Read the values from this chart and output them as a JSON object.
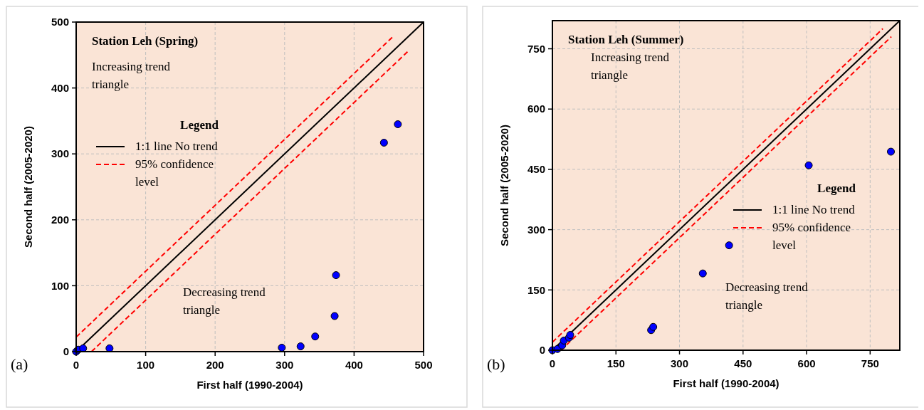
{
  "chart_data": [
    {
      "type": "scatter",
      "title": "Station Leh (Spring)",
      "xlabel": "First half (1990-2004)",
      "ylabel": "Second half (2005-2020)",
      "legend_title": "Legend",
      "legend": "center left",
      "grid": true,
      "xlim": [
        0,
        500
      ],
      "ylim": [
        0,
        500
      ],
      "xticks": [
        0,
        100,
        200,
        300,
        400,
        500
      ],
      "yticks": [
        0,
        100,
        200,
        300,
        400,
        500
      ],
      "annotations": [
        "Increasing trend triangle",
        "Decreasing trend triangle",
        "(a)"
      ],
      "series": [
        {
          "type": "line",
          "name": "1:1 line No trend",
          "color": "#000000",
          "line_style": "solid",
          "x": [
            0,
            500
          ],
          "values": [
            0,
            500
          ]
        },
        {
          "type": "line",
          "name": "95% confidence level",
          "color": "#ff0000",
          "line_style": "dashed",
          "x": [
            0,
            455
          ],
          "values": [
            22,
            477
          ]
        },
        {
          "type": "line",
          "color": "#ff0000",
          "line_style": "dashed",
          "x": [
            22,
            478
          ],
          "values": [
            0,
            456
          ]
        },
        {
          "marker": "circle",
          "color": "#0000ff",
          "x": [
            0,
            3,
            10,
            48,
            296,
            323,
            344,
            372,
            374,
            443,
            463
          ],
          "values": [
            0,
            3,
            5,
            5,
            6,
            8,
            23,
            54,
            116,
            317,
            345
          ]
        }
      ]
    },
    {
      "type": "scatter",
      "title": "Station Leh (Summer)",
      "xlabel": "First half (1990-2004)",
      "ylabel": "Second half (2005-2020)",
      "legend_title": "Legend",
      "legend": "center right",
      "grid": true,
      "xlim": [
        0,
        820
      ],
      "ylim": [
        0,
        820
      ],
      "xticks": [
        0,
        150,
        300,
        450,
        600,
        750
      ],
      "yticks": [
        0,
        150,
        300,
        450,
        600,
        750
      ],
      "annotations": [
        "Increasing trend triangle",
        "Decreasing trend triangle",
        "(b)"
      ],
      "series": [
        {
          "type": "line",
          "name": "1:1 line No trend",
          "color": "#000000",
          "line_style": "solid",
          "x": [
            0,
            820
          ],
          "values": [
            0,
            820
          ]
        },
        {
          "type": "line",
          "name": "95% confidence level",
          "color": "#ff0000",
          "line_style": "dashed",
          "x": [
            0,
            780
          ],
          "values": [
            20,
            800
          ]
        },
        {
          "type": "line",
          "color": "#ff0000",
          "line_style": "dashed",
          "x": [
            20,
            800
          ],
          "values": [
            0,
            780
          ]
        },
        {
          "marker": "circle",
          "color": "#0000ff",
          "x": [
            0,
            12,
            23,
            27,
            39,
            42,
            233,
            238,
            355,
            417,
            605,
            799
          ],
          "values": [
            0,
            3,
            12,
            24,
            31,
            38,
            50,
            58,
            191,
            261,
            460,
            494
          ]
        }
      ]
    }
  ]
}
